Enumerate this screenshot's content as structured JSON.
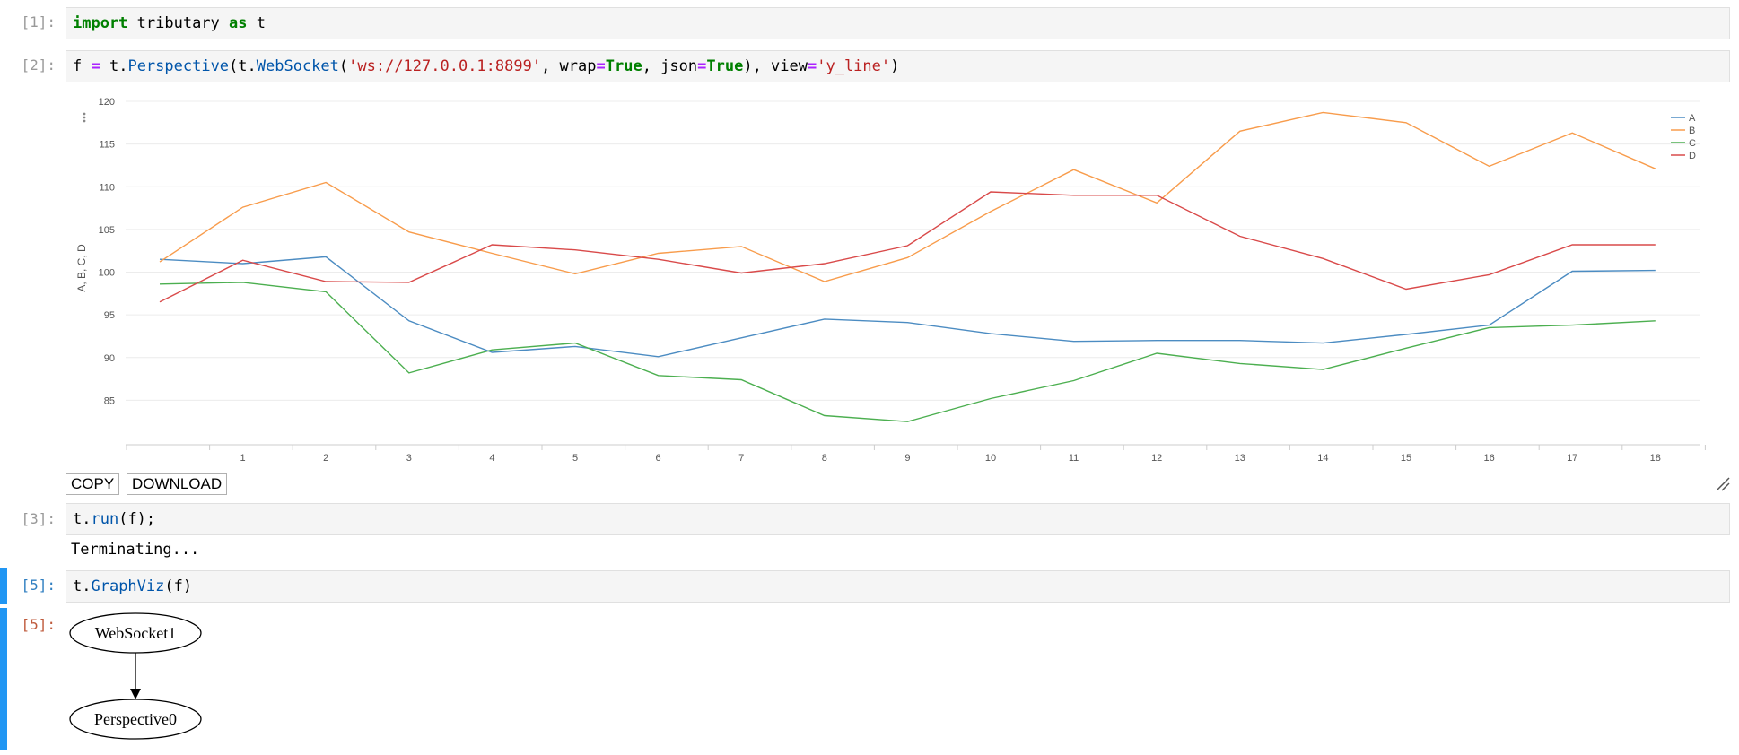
{
  "cells": [
    {
      "prompt": "[1]:",
      "code": [
        {
          "t": "import",
          "c": "kw"
        },
        {
          "t": " tributary ",
          "c": ""
        },
        {
          "t": "as",
          "c": "kw"
        },
        {
          "t": " t",
          "c": ""
        }
      ]
    },
    {
      "prompt": "[2]:",
      "code": [
        {
          "t": "f ",
          "c": ""
        },
        {
          "t": "=",
          "c": "op"
        },
        {
          "t": " t.",
          "c": ""
        },
        {
          "t": "Perspective",
          "c": "fn"
        },
        {
          "t": "(t.",
          "c": ""
        },
        {
          "t": "WebSocket",
          "c": "fn"
        },
        {
          "t": "(",
          "c": ""
        },
        {
          "t": "'ws://127.0.0.1:8899'",
          "c": "str"
        },
        {
          "t": ", wrap",
          "c": ""
        },
        {
          "t": "=",
          "c": "op"
        },
        {
          "t": "True",
          "c": "kw"
        },
        {
          "t": ", json",
          "c": ""
        },
        {
          "t": "=",
          "c": "op"
        },
        {
          "t": "True",
          "c": "kw"
        },
        {
          "t": "), view",
          "c": ""
        },
        {
          "t": "=",
          "c": "op"
        },
        {
          "t": "'y_line'",
          "c": "str"
        },
        {
          "t": ")",
          "c": ""
        }
      ]
    },
    {
      "prompt": "[3]:",
      "code": [
        {
          "t": "t.",
          "c": ""
        },
        {
          "t": "run",
          "c": "fn"
        },
        {
          "t": "(f);",
          "c": ""
        }
      ],
      "output": "Terminating..."
    },
    {
      "prompt": "[5]:",
      "code": [
        {
          "t": "t.",
          "c": ""
        },
        {
          "t": "GraphViz",
          "c": "fn"
        },
        {
          "t": "(f)",
          "c": ""
        }
      ],
      "out_prompt": "[5]:"
    }
  ],
  "buttons": {
    "copy": "COPY",
    "download": "DOWNLOAD"
  },
  "graph": {
    "node_top": "WebSocket1",
    "node_bottom": "Perspective0"
  },
  "colors": {
    "A": "#4c8cc2",
    "B": "#f89c4c",
    "C": "#4caf50",
    "D": "#d94a4a",
    "selection": "#2196f3"
  },
  "chart_data": {
    "type": "line",
    "x": [
      0,
      1,
      2,
      3,
      4,
      5,
      6,
      7,
      8,
      9,
      10,
      11,
      12,
      13,
      14,
      15,
      16,
      17,
      18
    ],
    "xticks": [
      "1",
      "2",
      "3",
      "4",
      "5",
      "6",
      "7",
      "8",
      "9",
      "10",
      "11",
      "12",
      "13",
      "14",
      "15",
      "16",
      "17",
      "18"
    ],
    "ylabel": "A, B, C, D",
    "ylim": [
      80,
      120
    ],
    "yticks": [
      85,
      90,
      95,
      100,
      105,
      110,
      115,
      120
    ],
    "grid": true,
    "legend": "top-right",
    "series": [
      {
        "name": "A",
        "color": "#4c8cc2",
        "values": [
          101.5,
          101.0,
          101.8,
          94.3,
          90.6,
          91.3,
          90.1,
          92.3,
          94.5,
          94.1,
          92.8,
          91.9,
          92.0,
          92.0,
          91.7,
          92.7,
          93.8,
          100.1,
          100.2
        ]
      },
      {
        "name": "B",
        "color": "#f89c4c",
        "values": [
          101.2,
          107.6,
          110.5,
          104.7,
          102.2,
          99.8,
          102.2,
          103.0,
          98.9,
          101.7,
          107.1,
          112.0,
          108.1,
          116.5,
          118.7,
          117.5,
          112.4,
          116.3,
          112.1
        ]
      },
      {
        "name": "C",
        "color": "#4caf50",
        "values": [
          98.6,
          98.8,
          97.7,
          88.2,
          90.9,
          91.7,
          87.9,
          87.4,
          83.2,
          82.5,
          85.2,
          87.3,
          90.5,
          89.3,
          88.6,
          91.1,
          93.5,
          93.8,
          94.3
        ]
      },
      {
        "name": "D",
        "color": "#d94a4a",
        "values": [
          96.5,
          101.4,
          98.9,
          98.8,
          103.2,
          102.6,
          101.5,
          99.9,
          101.0,
          103.1,
          109.4,
          109.0,
          109.0,
          104.2,
          101.6,
          98.0,
          99.7,
          103.2,
          103.2
        ]
      }
    ]
  }
}
